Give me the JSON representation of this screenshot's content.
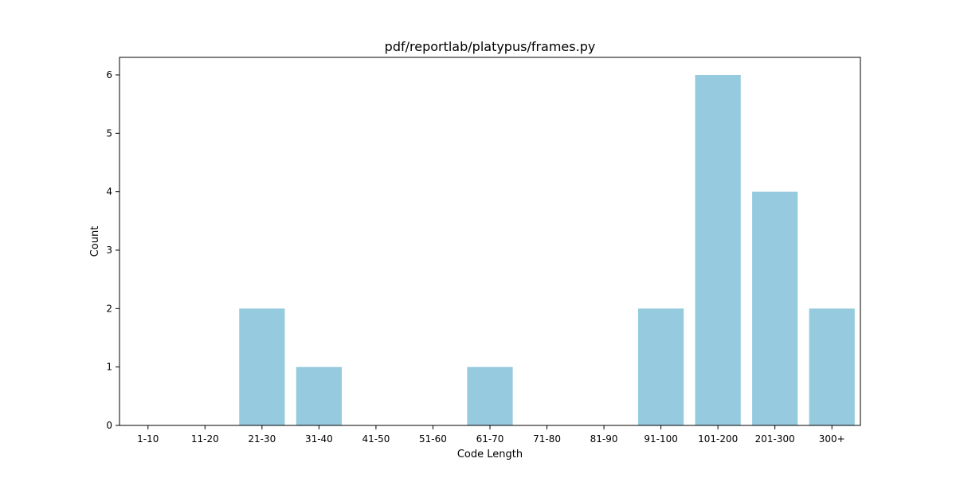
{
  "chart_data": {
    "type": "bar",
    "title": "pdf/reportlab/platypus/frames.py",
    "xlabel": "Code Length",
    "ylabel": "Count",
    "categories": [
      "1-10",
      "11-20",
      "21-30",
      "31-40",
      "41-50",
      "51-60",
      "61-70",
      "71-80",
      "81-90",
      "91-100",
      "101-200",
      "201-300",
      "300+"
    ],
    "values": [
      0,
      0,
      2,
      1,
      0,
      0,
      1,
      0,
      0,
      2,
      6,
      4,
      2
    ],
    "ylim": [
      0,
      6.3
    ],
    "yticks": [
      0,
      1,
      2,
      3,
      4,
      5,
      6
    ],
    "bar_color": "#96cadf",
    "grid": false
  }
}
